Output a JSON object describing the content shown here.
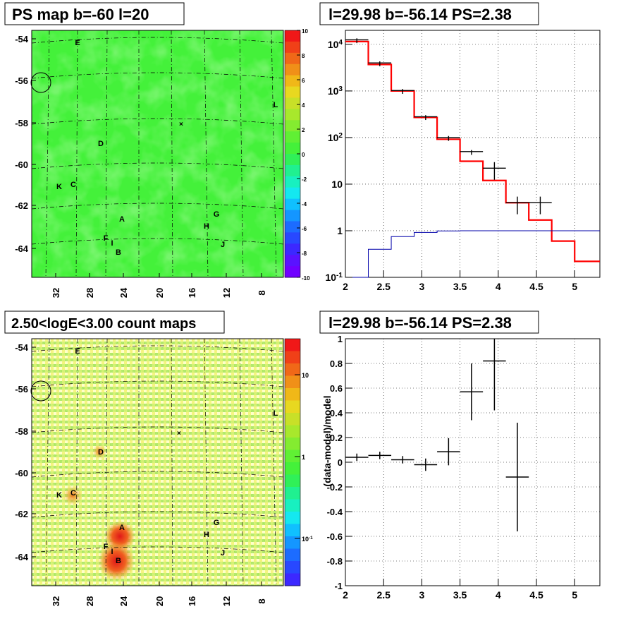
{
  "panels": {
    "ps_map": {
      "title": "PS map b=-60 l=20",
      "y_ticks": [
        "-54",
        "-56",
        "-58",
        "-60",
        "-62",
        "-64"
      ],
      "x_ticks": [
        "32",
        "28",
        "24",
        "20",
        "16",
        "12",
        "8"
      ],
      "colorbar_ticks": [
        "10",
        "8",
        "6",
        "4",
        "2",
        "0",
        "-2",
        "-4",
        "-6",
        "-8",
        "-10"
      ],
      "colorbar_range": [
        -10,
        10
      ],
      "background_value": 0.5,
      "source_labels": [
        "E",
        "L",
        "D",
        "K",
        "C",
        "A",
        "G",
        "H",
        "F",
        "I",
        "B",
        "J"
      ],
      "colors": {
        "field": "#44f13a",
        "patch": "#58ef4a",
        "hot": "#7fe82f",
        "circle": "#000000"
      }
    },
    "spectrum": {
      "title": "l=29.98 b=-56.14 PS=2.38",
      "x_ticks": [
        "2",
        "2.5",
        "3",
        "3.5",
        "4",
        "4.5",
        "5"
      ],
      "y_ticks": [
        "10^4",
        "10^3",
        "10^2",
        "10",
        "1",
        "10^-1"
      ],
      "y_scale": "log",
      "colors": {
        "model": "#ff0000",
        "data": "#000000",
        "background": "#0000aa"
      }
    },
    "count_map": {
      "title": "2.50<logE<3.00 count maps",
      "y_ticks": [
        "-54",
        "-56",
        "-58",
        "-60",
        "-62",
        "-64"
      ],
      "x_ticks": [
        "32",
        "28",
        "24",
        "20",
        "16",
        "12",
        "8"
      ],
      "colorbar_ticks": [
        "10",
        "1",
        "10^-1"
      ],
      "colorbar_scale": "log",
      "source_labels": [
        "E",
        "L",
        "D",
        "K",
        "C",
        "A",
        "G",
        "H",
        "F",
        "I",
        "B",
        "J"
      ]
    },
    "residual": {
      "title": "l=29.98 b=-56.14 PS=2.38",
      "ylabel": "(data-model)/model",
      "x_ticks": [
        "2",
        "2.5",
        "3",
        "3.5",
        "4",
        "4.5",
        "5"
      ],
      "y_ticks": [
        "1",
        "0.8",
        "0.6",
        "0.4",
        "0.2",
        "0",
        "-0.2",
        "-0.4",
        "-0.6",
        "-0.8",
        "-1"
      ]
    }
  },
  "chart_data": [
    {
      "type": "heatmap",
      "title": "PS map b=-60 l=20",
      "xlabel": "",
      "ylabel": "",
      "x_ticks": [
        32,
        28,
        24,
        20,
        16,
        12,
        8
      ],
      "y_ticks": [
        -54,
        -56,
        -58,
        -60,
        -62,
        -64
      ],
      "zlim": [
        -10,
        10
      ],
      "grid": true,
      "sources": [
        "E",
        "L",
        "D",
        "K",
        "C",
        "A",
        "G",
        "H",
        "F",
        "I",
        "B",
        "J"
      ]
    },
    {
      "type": "line",
      "title": "l=29.98 b=-56.14 PS=2.38",
      "xlim": [
        2,
        5.33
      ],
      "ylim": [
        0.1,
        20000
      ],
      "y_scale": "log",
      "grid": true,
      "bin_edges": [
        2.0,
        2.3,
        2.6,
        2.9,
        3.2,
        3.5,
        3.8,
        4.1,
        4.4,
        4.7,
        5.0,
        5.33
      ],
      "series": [
        {
          "values": [
            11500,
            3700,
            1000,
            270,
            92,
            31,
            12,
            4,
            1.7,
            0.6,
            0.22
          ]
        },
        {
          "values": [
            0.1,
            0.4,
            0.75,
            0.92,
            0.99,
            1,
            1,
            1,
            1,
            1,
            1
          ]
        }
      ],
      "data_points": [
        {
          "x": 2.15,
          "y": 12500
        },
        {
          "x": 2.45,
          "y": 4000
        },
        {
          "x": 2.75,
          "y": 1020
        },
        {
          "x": 3.05,
          "y": 280
        },
        {
          "x": 3.35,
          "y": 100
        },
        {
          "x": 3.65,
          "y": 50
        },
        {
          "x": 3.95,
          "y": 22
        },
        {
          "x": 4.25,
          "y": 4
        },
        {
          "x": 4.55,
          "y": 4
        }
      ]
    },
    {
      "type": "heatmap",
      "title": "2.50<logE<3.00 count maps",
      "xlabel": "",
      "ylabel": "",
      "x_ticks": [
        32,
        28,
        24,
        20,
        16,
        12,
        8
      ],
      "y_ticks": [
        -54,
        -56,
        -58,
        -60,
        -62,
        -64
      ],
      "z_scale": "log",
      "zlim": [
        0.05,
        30
      ],
      "grid": true,
      "sources": [
        "E",
        "L",
        "D",
        "K",
        "C",
        "A",
        "G",
        "H",
        "F",
        "I",
        "B",
        "J"
      ]
    },
    {
      "type": "scatter",
      "title": "l=29.98 b=-56.14 PS=2.38",
      "ylabel": "(data-model)/model",
      "xlim": [
        2,
        5.33
      ],
      "ylim": [
        -1,
        1
      ],
      "grid": true,
      "points": [
        {
          "x": 2.15,
          "y": 0.04,
          "err": 0.03
        },
        {
          "x": 2.45,
          "y": 0.055,
          "err": 0.03
        },
        {
          "x": 2.75,
          "y": 0.02,
          "err": 0.03
        },
        {
          "x": 3.05,
          "y": -0.02,
          "err": 0.05
        },
        {
          "x": 3.35,
          "y": 0.085,
          "err": 0.11
        },
        {
          "x": 3.65,
          "y": 0.57,
          "err": 0.23
        },
        {
          "x": 3.95,
          "y": 0.82,
          "err": 0.4
        },
        {
          "x": 4.25,
          "y": -0.12,
          "err": 0.44
        }
      ]
    }
  ]
}
